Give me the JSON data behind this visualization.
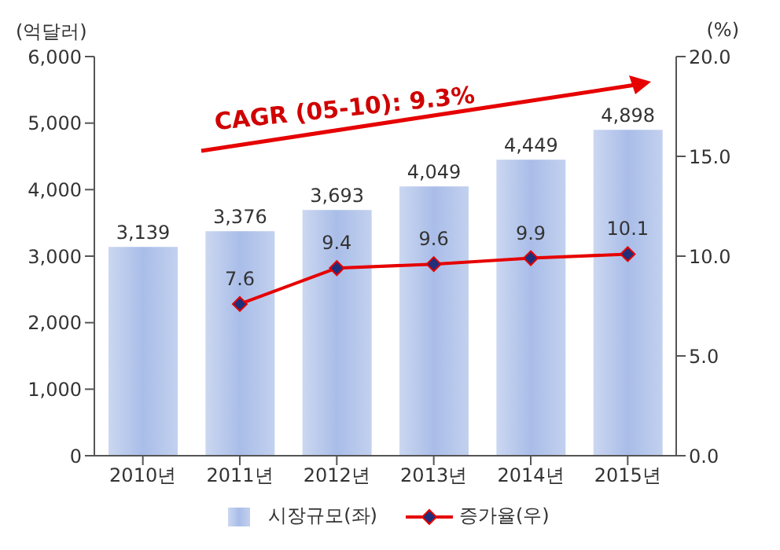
{
  "chart_data": {
    "type": "bar",
    "categories": [
      "2010년",
      "2011년",
      "2012년",
      "2013년",
      "2014년",
      "2015년"
    ],
    "ylabel": "(억달러)",
    "y2label": "(%)",
    "series": [
      {
        "name": "시장규모(좌)",
        "color": "#a9bde8",
        "values": [
          3139,
          3376,
          3693,
          4049,
          4449,
          4898
        ],
        "value_labels": [
          "3,139",
          "3,376",
          "3,693",
          "4,049",
          "4,449",
          "4,898"
        ]
      },
      {
        "name": "증가율(우)",
        "type": "line",
        "axis": "y2",
        "color": "#e60000",
        "values": [
          null,
          7.6,
          9.4,
          9.6,
          9.9,
          10.1
        ],
        "value_labels": [
          null,
          "7.6",
          "9.4",
          "9.6",
          "9.9",
          "10.1"
        ]
      }
    ],
    "ylim": [
      0,
      6000
    ],
    "yticks": [
      {
        "value": 0,
        "label": "0"
      },
      {
        "value": 1000,
        "label": "1,000"
      },
      {
        "value": 2000,
        "label": "2,000"
      },
      {
        "value": 3000,
        "label": "3,000"
      },
      {
        "value": 4000,
        "label": "4,000"
      },
      {
        "value": 5000,
        "label": "5,000"
      },
      {
        "value": 6000,
        "label": "6,000"
      }
    ],
    "y2lim": [
      0,
      20
    ],
    "y2ticks": [
      {
        "value": 0,
        "label": "0.0"
      },
      {
        "value": 5,
        "label": "5.0"
      },
      {
        "value": 10,
        "label": "10.0"
      },
      {
        "value": 15,
        "label": "15.0"
      },
      {
        "value": 20,
        "label": "20.0"
      }
    ],
    "annotations": [
      "CAGR (05-10): 9.3%"
    ],
    "legend": "bottom",
    "marker": "diamond",
    "line_style": "solid",
    "grid": false
  }
}
